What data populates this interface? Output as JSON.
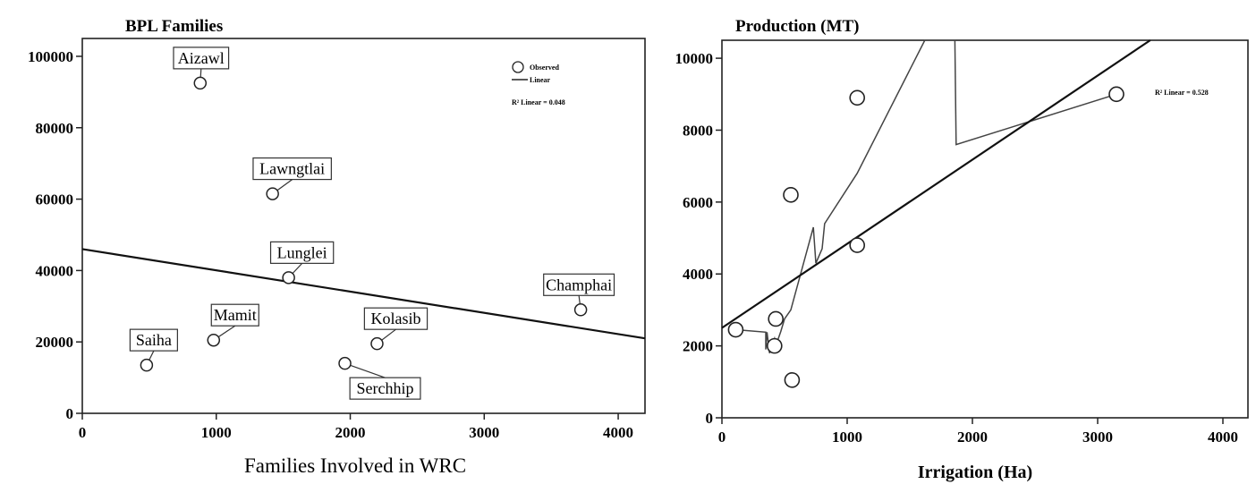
{
  "chart_data": [
    {
      "type": "scatter",
      "title": "BPL Families",
      "xlabel": "Families Involved in WRC",
      "ylabel": "",
      "xlim": [
        0,
        4200
      ],
      "ylim": [
        0,
        105000
      ],
      "xticks": [
        0,
        1000,
        2000,
        3000,
        4000
      ],
      "xtick_labels": [
        "0",
        "1000",
        "2000",
        "3000",
        "4000"
      ],
      "yticks": [
        0,
        20000,
        40000,
        60000,
        80000,
        100000
      ],
      "ytick_labels": [
        "0",
        "20000",
        "40000",
        "60000",
        "80000",
        "100000"
      ],
      "legend": {
        "position": "top-right",
        "observed": "Observed",
        "linear": "Linear",
        "r2_text": "R² Linear = 0.048"
      },
      "points": [
        {
          "label": "Aizawl",
          "x": 880,
          "y": 92500
        },
        {
          "label": "Lawngtlai",
          "x": 1420,
          "y": 61500
        },
        {
          "label": "Lunglei",
          "x": 1540,
          "y": 38000
        },
        {
          "label": "Champhai",
          "x": 3720,
          "y": 29000
        },
        {
          "label": "Mamit",
          "x": 980,
          "y": 20500
        },
        {
          "label": "Kolasib",
          "x": 2200,
          "y": 19500
        },
        {
          "label": "Saiha",
          "x": 480,
          "y": 13500
        },
        {
          "label": "Serchhip",
          "x": 1960,
          "y": 14000
        }
      ],
      "fit_line": {
        "x": [
          0,
          4200
        ],
        "y": [
          46000,
          21000
        ]
      },
      "grid": false
    },
    {
      "type": "scatter",
      "title": "Production (MT)",
      "xlabel": "Irrigation (Ha)",
      "ylabel": "",
      "xlim": [
        0,
        4200
      ],
      "ylim": [
        0,
        10500
      ],
      "xticks": [
        0,
        1000,
        2000,
        3000,
        4000
      ],
      "xtick_labels": [
        "0",
        "1000",
        "2000",
        "3000",
        "4000"
      ],
      "yticks": [
        0,
        2000,
        4000,
        6000,
        8000,
        10000
      ],
      "ytick_labels": [
        "0",
        "2000",
        "4000",
        "6000",
        "8000",
        "10000"
      ],
      "legend": {
        "position": "top-right",
        "r2_text": "R² Linear = 0.528"
      },
      "points": [
        {
          "x": 110,
          "y": 2450
        },
        {
          "x": 430,
          "y": 2750
        },
        {
          "x": 420,
          "y": 2000
        },
        {
          "x": 560,
          "y": 1050
        },
        {
          "x": 550,
          "y": 6200
        },
        {
          "x": 1080,
          "y": 8900
        },
        {
          "x": 1080,
          "y": 4800
        },
        {
          "x": 3150,
          "y": 9000
        }
      ],
      "fit_line": {
        "x": [
          0,
          3420
        ],
        "y": [
          2500,
          10500
        ]
      },
      "fit_path": {
        "x": [
          110,
          350,
          350,
          360,
          380,
          420,
          430,
          470,
          500,
          550,
          730,
          750,
          800,
          820,
          1080,
          1620,
          1620,
          1860,
          1870,
          3150
        ],
        "y": [
          2450,
          2380,
          1900,
          2380,
          1800,
          2200,
          2000,
          2400,
          2750,
          3000,
          5300,
          4300,
          4700,
          5400,
          6800,
          10500,
          10500,
          10500,
          7600,
          9000
        ]
      },
      "grid": false
    }
  ]
}
